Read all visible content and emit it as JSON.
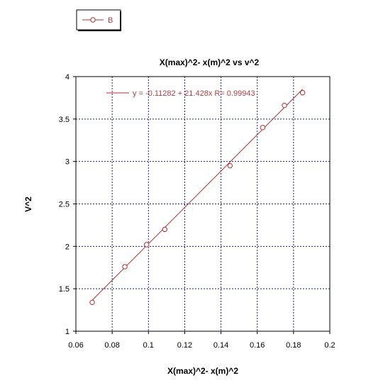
{
  "chart_data": {
    "type": "scatter",
    "title": "X(max)^2- x(m)^2 vs v^2",
    "xlabel": "X(max)^2- x(m)^2",
    "ylabel": "V^2",
    "xlim": [
      0.06,
      0.2
    ],
    "ylim": [
      1,
      4
    ],
    "xticks": [
      "0.06",
      "0.08",
      "0.1",
      "0.12",
      "0.14",
      "0.16",
      "0.18",
      "0.2"
    ],
    "yticks": [
      "1",
      "1.5",
      "2",
      "2.5",
      "3",
      "3.5",
      "4"
    ],
    "grid": true,
    "series": [
      {
        "name": "B",
        "color": "#b03030",
        "marker": "open-circle",
        "x": [
          0.069,
          0.087,
          0.099,
          0.109,
          0.145,
          0.163,
          0.175,
          0.185
        ],
        "y": [
          1.34,
          1.76,
          2.02,
          2.2,
          2.95,
          3.4,
          3.66,
          3.81
        ]
      }
    ],
    "fit": {
      "label": "y = -0.11282 + 21.428x  R= 0.99943",
      "intercept": -0.11282,
      "slope": 21.428,
      "x_range": [
        0.069,
        0.185
      ]
    },
    "legend": {
      "placement": "top-left-outside",
      "label": "B"
    }
  }
}
